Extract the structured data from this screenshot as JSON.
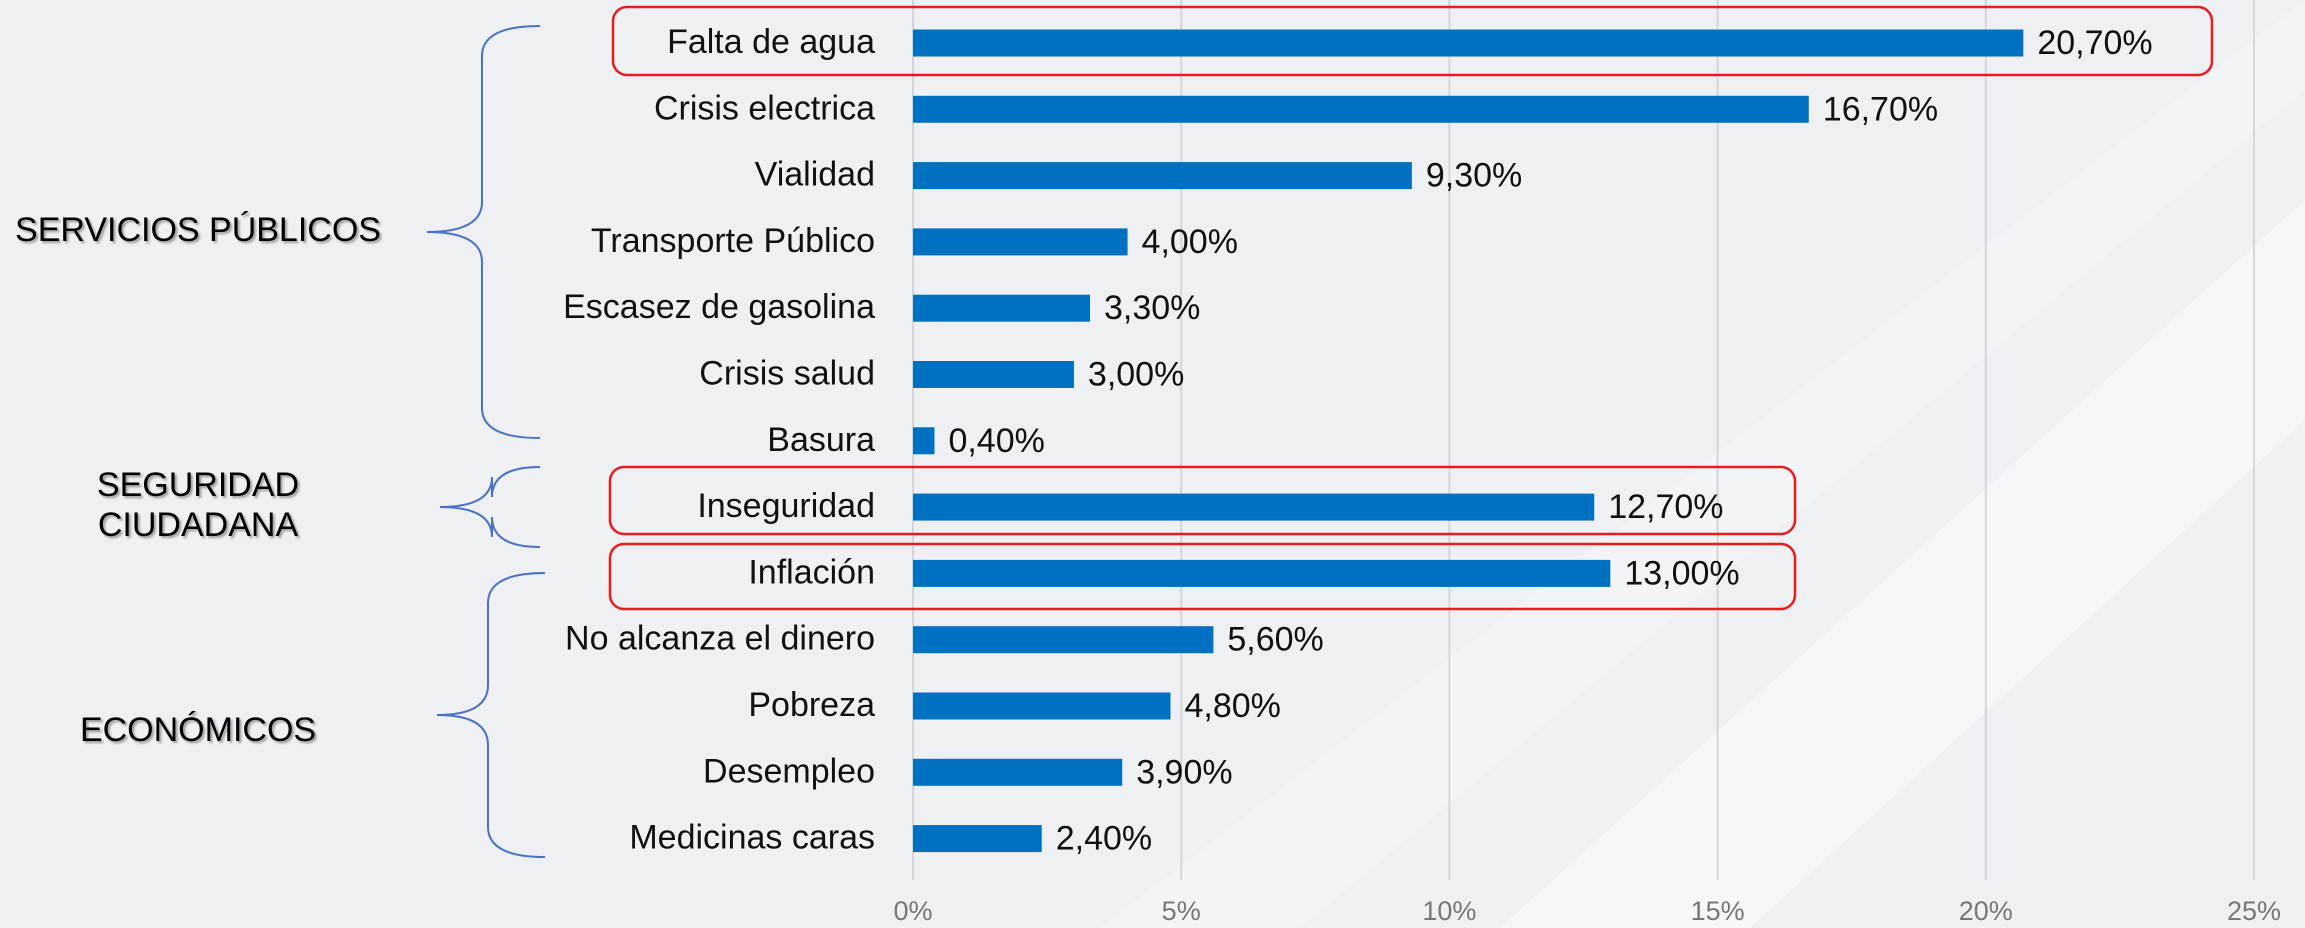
{
  "chart_data": {
    "type": "barh",
    "categories": [
      "Falta de agua",
      "Crisis electrica",
      "Vialidad",
      "Transporte Público",
      "Escasez de gasolina",
      "Crisis salud",
      "Basura",
      "Inseguridad",
      "Inflación",
      "No alcanza el dinero",
      "Pobreza",
      "Desempleo",
      "Medicinas caras"
    ],
    "values": [
      20.7,
      16.7,
      9.3,
      4.0,
      3.3,
      3.0,
      0.4,
      12.7,
      13.0,
      5.6,
      4.8,
      3.9,
      2.4
    ],
    "value_labels": [
      "20,70%",
      "16,70%",
      "9,30%",
      "4,00%",
      "3,30%",
      "3,00%",
      "0,40%",
      "12,70%",
      "13,00%",
      "5,60%",
      "4,80%",
      "3,90%",
      "2,40%"
    ],
    "color": "#0070c0",
    "xlim": [
      0,
      25
    ],
    "xticks": [
      {
        "value": 0,
        "label": "0%"
      },
      {
        "value": 5,
        "label": "5%"
      },
      {
        "value": 10,
        "label": "10%"
      },
      {
        "value": 15,
        "label": "15%"
      },
      {
        "value": 20,
        "label": "20%"
      },
      {
        "value": 25,
        "label": "25%"
      }
    ],
    "grid": true,
    "annotations": [
      [
        "SERVICIOS PÚBLICOS"
      ],
      [
        "SEGURIDAD",
        "CIUDADANA"
      ],
      [
        "ECONÓMICOS"
      ]
    ]
  }
}
